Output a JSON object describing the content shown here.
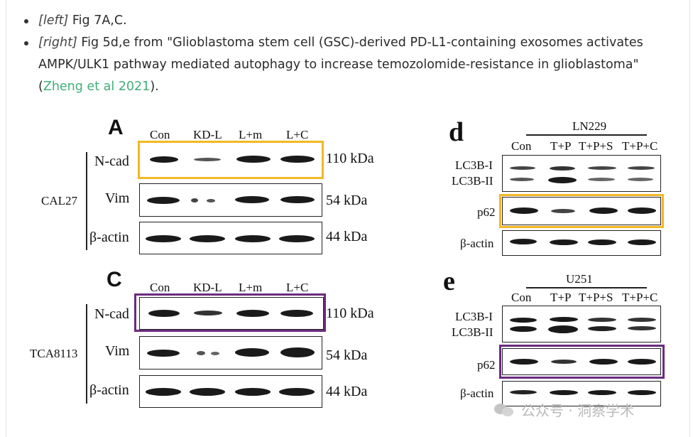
{
  "bullets": [
    {
      "tag": "[left]",
      "text": " Fig 7A,C."
    },
    {
      "tag": "[right]",
      "text_line1": " Fig 5d,e from \"Glioblastoma stem cell (GSC)-derived PD-L1-containing exosomes activates",
      "text_line2": "AMPK/ULK1 pathway mediated autophagy to increase temozolomide-resistance in glioblastoma\"",
      "open_paren": "(",
      "link": "Zheng et al 2021",
      "close": ")."
    }
  ],
  "left_figure": {
    "panel_A": {
      "letter": "A",
      "lanes": [
        "Con",
        "KD-L",
        "L+m",
        "L+C"
      ],
      "group": "CAL27",
      "rows": [
        {
          "label": "N-cad",
          "kda": "110 kDa",
          "highlight": "#f2b824"
        },
        {
          "label": "Vim",
          "kda": "54 kDa"
        },
        {
          "label": "β-actin",
          "kda": "44 kDa"
        }
      ]
    },
    "panel_C": {
      "letter": "C",
      "lanes": [
        "Con",
        "KD-L",
        "L+m",
        "L+C"
      ],
      "group": "TCA8113",
      "rows": [
        {
          "label": "N-cad",
          "kda": "110 kDa",
          "highlight": "#6a2c7e"
        },
        {
          "label": "Vim",
          "kda": "54 kDa"
        },
        {
          "label": "β-actin",
          "kda": "44 kDa"
        }
      ]
    }
  },
  "right_figure": {
    "panel_d": {
      "letter": "d",
      "cell_line": "LN229",
      "lanes": [
        "Con",
        "T+P",
        "T+P+S",
        "T+P+C"
      ],
      "rows": [
        {
          "label1": "LC3B-I",
          "label2": "LC3B-II"
        },
        {
          "label": "p62",
          "highlight": "#f2b824"
        },
        {
          "label": "β-actin"
        }
      ]
    },
    "panel_e": {
      "letter": "e",
      "cell_line": "U251",
      "lanes": [
        "Con",
        "T+P",
        "T+P+S",
        "T+P+C"
      ],
      "rows": [
        {
          "label1": "LC3B-I",
          "label2": "LC3B-II"
        },
        {
          "label": "p62",
          "highlight": "#6a2c7e"
        },
        {
          "label": "β-actin"
        }
      ]
    }
  },
  "watermark": {
    "text": "公众号 · 洞察学术",
    "icon": "wechat-icon"
  }
}
